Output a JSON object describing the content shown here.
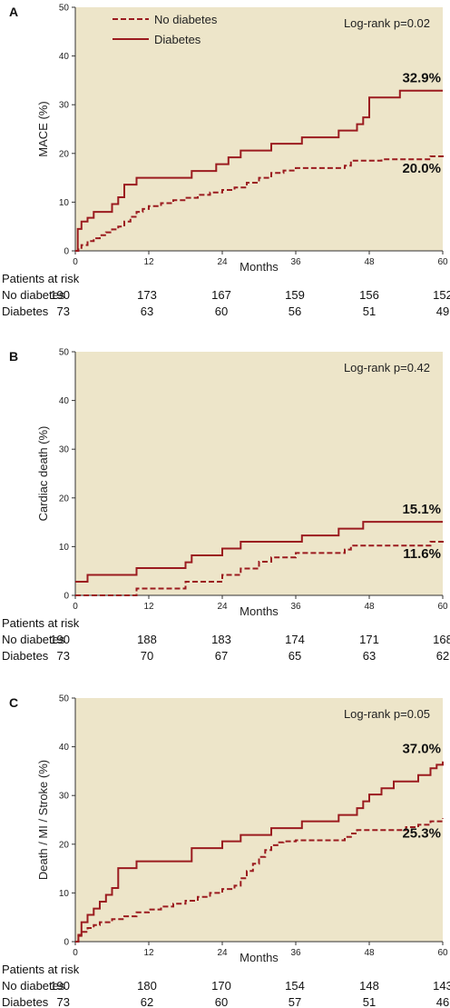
{
  "colors": {
    "plot_bg": "#ede5c9",
    "curve": "#9b1b1f",
    "axis": "#333333"
  },
  "legend": {
    "no_diabetes": "No diabetes",
    "diabetes": "Diabetes"
  },
  "risk_table": {
    "header": "Patients at risk",
    "row_no": "No diabetes",
    "row_yes": "Diabetes"
  },
  "chart_data": [
    {
      "type": "line",
      "panel": "A",
      "title": "",
      "xlabel": "Months",
      "ylabel": "MACE (%)",
      "xlim": [
        0,
        60
      ],
      "ylim": [
        0,
        50
      ],
      "xticks": [
        0,
        12,
        24,
        36,
        48,
        60
      ],
      "yticks": [
        0,
        10,
        20,
        30,
        40,
        50
      ],
      "grid": false,
      "legend": "top-left",
      "annotation": "Log-rank p=0.02",
      "series": [
        {
          "name": "No diabetes",
          "style": "dashed",
          "end_label": "20.0%",
          "x": [
            0,
            0.5,
            1,
            2,
            3,
            4,
            5,
            6,
            7,
            8,
            9,
            10,
            11,
            12,
            14,
            16,
            18,
            20,
            22,
            24,
            26,
            28,
            30,
            32,
            34,
            36,
            40,
            44,
            45,
            50,
            54,
            58,
            60
          ],
          "y": [
            0,
            0.6,
            1.2,
            2,
            2.6,
            3.2,
            3.8,
            4.4,
            5,
            6,
            7,
            8,
            8.6,
            9.2,
            9.8,
            10.4,
            10.9,
            11.5,
            12,
            12.5,
            13,
            14,
            15,
            16,
            16.5,
            17,
            17,
            17.5,
            18.5,
            18.8,
            18.8,
            19.4,
            20
          ]
        },
        {
          "name": "Diabetes",
          "style": "solid",
          "end_label": "32.9%",
          "x": [
            0,
            0.4,
            1,
            2,
            3,
            6,
            7,
            8,
            10,
            18,
            19,
            23,
            25,
            27,
            32,
            37,
            43,
            46,
            47,
            48,
            53,
            60
          ],
          "y": [
            0,
            4.5,
            6,
            6.8,
            8,
            9.6,
            11,
            13.6,
            15,
            15,
            16.4,
            17.8,
            19.2,
            20.6,
            22,
            23.3,
            24.7,
            26,
            27.4,
            31.5,
            32.9,
            32.9
          ]
        }
      ],
      "risk": {
        "months": [
          0,
          12,
          24,
          36,
          48,
          60
        ],
        "no_diabetes": [
          190,
          173,
          167,
          159,
          156,
          152
        ],
        "diabetes": [
          73,
          63,
          60,
          56,
          51,
          49
        ]
      }
    },
    {
      "type": "line",
      "panel": "B",
      "title": "",
      "xlabel": "Months",
      "ylabel": "Cardiac death (%)",
      "xlim": [
        0,
        60
      ],
      "ylim": [
        0,
        50
      ],
      "xticks": [
        0,
        12,
        24,
        36,
        48,
        60
      ],
      "yticks": [
        0,
        10,
        20,
        30,
        40,
        50
      ],
      "grid": false,
      "legend": "none",
      "annotation": "Log-rank p=0.42",
      "series": [
        {
          "name": "No diabetes",
          "style": "dashed",
          "end_label": "11.6%",
          "x": [
            0,
            2,
            8,
            10,
            16,
            18,
            20,
            24,
            27,
            30,
            32,
            36,
            40,
            44,
            45,
            54,
            58,
            60
          ],
          "y": [
            0,
            0,
            0,
            1.4,
            1.4,
            2.8,
            2.8,
            4.2,
            5.5,
            6.9,
            7.8,
            8.7,
            8.7,
            9.4,
            10.2,
            10.2,
            11,
            11.6
          ]
        },
        {
          "name": "Diabetes",
          "style": "solid",
          "end_label": "15.1%",
          "x": [
            0,
            2,
            10,
            18,
            19,
            24,
            27,
            32,
            37,
            43,
            47,
            60
          ],
          "y": [
            2.8,
            4.2,
            5.6,
            6.8,
            8.2,
            9.6,
            11,
            11,
            12.3,
            13.7,
            15.1,
            15.1
          ]
        }
      ],
      "risk": {
        "months": [
          0,
          12,
          24,
          36,
          48,
          60
        ],
        "no_diabetes": [
          190,
          188,
          183,
          174,
          171,
          168
        ],
        "diabetes": [
          73,
          70,
          67,
          65,
          63,
          62
        ]
      }
    },
    {
      "type": "line",
      "panel": "C",
      "title": "",
      "xlabel": "Months",
      "ylabel": "Death / MI / Stroke (%)",
      "xlim": [
        0,
        60
      ],
      "ylim": [
        0,
        50
      ],
      "xticks": [
        0,
        12,
        24,
        36,
        48,
        60
      ],
      "yticks": [
        0,
        10,
        20,
        30,
        40,
        50
      ],
      "grid": false,
      "legend": "none",
      "annotation": "Log-rank p=0.05",
      "series": [
        {
          "name": "No diabetes",
          "style": "dashed",
          "end_label": "25.3%",
          "x": [
            0,
            0.5,
            1,
            2,
            3,
            4,
            6,
            8,
            10,
            12,
            14,
            16,
            18,
            20,
            22,
            24,
            26,
            27,
            28,
            29,
            30,
            31,
            32,
            33,
            34,
            36,
            40,
            44,
            45,
            46,
            48,
            54,
            56,
            58,
            60
          ],
          "y": [
            0,
            1.2,
            2,
            2.8,
            3.4,
            4,
            4.6,
            5.2,
            6,
            6.6,
            7.2,
            7.8,
            8.4,
            9.2,
            10,
            10.8,
            11.5,
            13,
            14.5,
            16,
            17.4,
            18.8,
            19.8,
            20.4,
            20.6,
            20.8,
            20.8,
            21.5,
            22.2,
            22.9,
            22.9,
            23.5,
            24,
            24.7,
            25.3
          ]
        },
        {
          "name": "Diabetes",
          "style": "solid",
          "end_label": "37.0%",
          "x": [
            0,
            0.5,
            1,
            2,
            3,
            4,
            5,
            6,
            7,
            10,
            18,
            19,
            24,
            27,
            32,
            37,
            43,
            46,
            47,
            48,
            50,
            52,
            56,
            58,
            59,
            60
          ],
          "y": [
            0,
            1.4,
            4,
            5.5,
            6.8,
            8.2,
            9.6,
            11,
            15.1,
            16.5,
            16.5,
            19.2,
            20.6,
            21.9,
            23.3,
            24.7,
            26,
            27.4,
            28.8,
            30.2,
            31.5,
            32.9,
            34.2,
            35.6,
            36.3,
            37
          ]
        }
      ],
      "risk": {
        "months": [
          0,
          12,
          24,
          36,
          48,
          60
        ],
        "no_diabetes": [
          190,
          180,
          170,
          154,
          148,
          143
        ],
        "diabetes": [
          73,
          62,
          60,
          57,
          51,
          46
        ]
      }
    }
  ]
}
